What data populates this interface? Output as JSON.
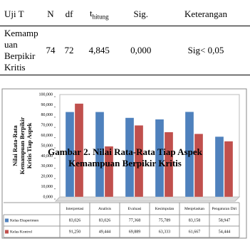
{
  "table": {
    "headers": [
      "Uji T",
      "N",
      "df",
      {
        "main": "t",
        "sub": "hitung"
      },
      "Sig.",
      "Keterangan"
    ],
    "rows": [
      [
        "Kemampuan Berpikir Kritis",
        "74",
        "72",
        "4,845",
        "0,000",
        "Sig< 0,05"
      ]
    ]
  },
  "chart_data": {
    "type": "bar",
    "ylabel": [
      "Nilai Rata-Rata",
      "Kemampuan Berpikir",
      "Kritis Tiap Aspek"
    ],
    "categories": [
      "Interpretasi",
      "Analisis",
      "Evaluasi",
      "Kesimpulan",
      "Menjelaskan",
      "Pengaturan Diri"
    ],
    "series": [
      {
        "name": "Kelas Eksperimen",
        "color": "#4f81bd",
        "values": [
          83.026,
          83.026,
          77.368,
          75.789,
          83.158,
          58.947
        ],
        "value_labels": [
          "83,026",
          "83,026",
          "77,368",
          "75,789",
          "83,158",
          "58,947"
        ]
      },
      {
        "name": "Kelas Kontrol",
        "color": "#c0504d",
        "values": [
          91.25,
          49.444,
          69.889,
          63.333,
          61.667,
          54.444
        ],
        "value_labels": [
          "91,250",
          "49,444",
          "69,889",
          "63,333",
          "61,667",
          "54,444"
        ]
      }
    ],
    "ylim": [
      0,
      100
    ],
    "yticks": [
      {
        "value": 0,
        "label": "0,000"
      },
      {
        "value": 10,
        "label": "10,000"
      },
      {
        "value": 20,
        "label": "20,000"
      },
      {
        "value": 30,
        "label": "30,000"
      },
      {
        "value": 40,
        "label": "40,000"
      },
      {
        "value": 50,
        "label": "50,000"
      },
      {
        "value": 60,
        "label": "60,000"
      },
      {
        "value": 70,
        "label": "70,000"
      },
      {
        "value": 80,
        "label": "80,000"
      },
      {
        "value": 90,
        "label": "90,000"
      },
      {
        "value": 100,
        "label": "100,000"
      }
    ],
    "grid": false
  },
  "caption": [
    "Gambar 2. Nilai Rata-Rata Tiap Aspek",
    "Kemampuan Berpikir Kritis"
  ]
}
